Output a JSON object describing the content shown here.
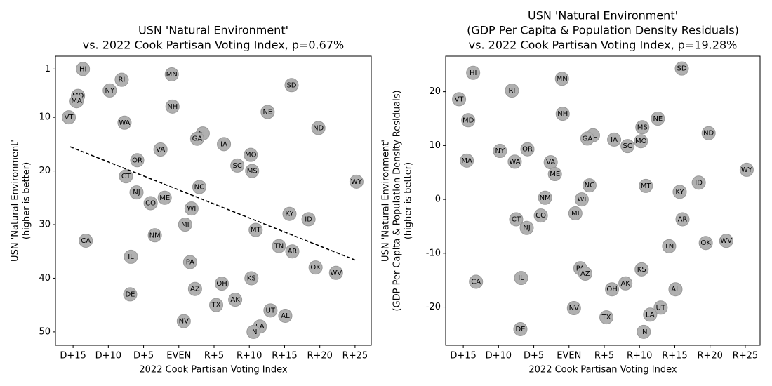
{
  "chart_data": [
    {
      "type": "scatter",
      "title": [
        "USN 'Natural Environment'",
        "vs. 2022 Cook Partisan Voting Index, p=0.67%"
      ],
      "xlabel": "2022 Cook Partisan Voting Index",
      "ylabel": [
        "USN 'Natural Environment'",
        "(higher is better)"
      ],
      "labels": [
        "HI",
        "MD",
        "MA",
        "VT",
        "NY",
        "RI",
        "MN",
        "NH",
        "WA",
        "NE",
        "SD",
        "ND",
        "FL",
        "GA",
        "IA",
        "VA",
        "MO",
        "OR",
        "SC",
        "MS",
        "CT",
        "WY",
        "NC",
        "NJ",
        "ME",
        "CO",
        "WI",
        "KY",
        "ID",
        "MI",
        "MT",
        "NM",
        "CA",
        "TN",
        "AR",
        "IL",
        "PA",
        "OK",
        "WV",
        "KS",
        "OH",
        "AZ",
        "DE",
        "AK",
        "TX",
        "UT",
        "AL",
        "NV",
        "LA",
        "IN"
      ],
      "x": [
        -13.6,
        -14.3,
        -14.5,
        -15.6,
        -9.8,
        -8.1,
        -1.0,
        -0.9,
        -7.7,
        12.6,
        16.0,
        19.8,
        3.4,
        2.6,
        6.4,
        -2.6,
        10.2,
        -5.9,
        8.3,
        10.4,
        -7.5,
        25.2,
        2.9,
        -6.0,
        -2.0,
        -4.0,
        1.8,
        15.7,
        18.4,
        0.9,
        10.9,
        -3.4,
        -13.2,
        14.2,
        16.1,
        -6.8,
        1.6,
        19.4,
        22.3,
        10.3,
        6.1,
        2.3,
        -6.9,
        8.0,
        5.3,
        13.0,
        15.1,
        0.7,
        11.5,
        10.6
      ],
      "y": [
        1,
        6,
        7,
        10,
        5,
        3,
        2,
        8,
        11,
        9,
        4,
        12,
        13,
        14,
        15,
        16,
        17,
        18,
        19,
        20,
        21,
        22,
        23,
        24,
        25,
        26,
        27,
        28,
        29,
        30,
        31,
        32,
        33,
        34,
        35,
        36,
        37,
        38,
        39,
        40,
        41,
        42,
        43,
        44,
        45,
        46,
        47,
        48,
        49,
        50
      ],
      "color": "#b0b0b0",
      "trendline": {
        "x": [
          -15.4,
          25.0
        ],
        "y": [
          15.5,
          36.6
        ]
      },
      "xlim": [
        -17.5,
        27.3
      ],
      "ylim": [
        52.5,
        -1.4
      ],
      "xticks": [
        {
          "value": -15,
          "label": "D+15"
        },
        {
          "value": -10,
          "label": "D+10"
        },
        {
          "value": -5,
          "label": "D+5"
        },
        {
          "value": 0,
          "label": "EVEN"
        },
        {
          "value": 5,
          "label": "R+5"
        },
        {
          "value": 10,
          "label": "R+10"
        },
        {
          "value": 15,
          "label": "R+15"
        },
        {
          "value": 20,
          "label": "R+20"
        },
        {
          "value": 25,
          "label": "R+25"
        }
      ],
      "yticks": [
        1,
        10,
        20,
        30,
        40,
        50
      ]
    },
    {
      "type": "scatter",
      "title": [
        "USN 'Natural Environment'",
        "(GDP Per Capita & Population Density Residuals)",
        "vs. 2022 Cook Partisan Voting Index, p=19.28%"
      ],
      "xlabel": "2022 Cook Partisan Voting Index",
      "ylabel": [
        "USN 'Natural Environment'",
        "(GDP Per Capita & Population Density Residuals)",
        "(higher is better)"
      ],
      "labels": [
        "HI",
        "MN",
        "SD",
        "RI",
        "VT",
        "NE",
        "MD",
        "NH",
        "MS",
        "ND",
        "FL",
        "GA",
        "IA",
        "MO",
        "SC",
        "NY",
        "OR",
        "MA",
        "WA",
        "VA",
        "WY",
        "ME",
        "ID",
        "NC",
        "MT",
        "KY",
        "NM",
        "WI",
        "MI",
        "CO",
        "AR",
        "CT",
        "NJ",
        "WV",
        "OK",
        "TN",
        "PA",
        "KS",
        "AZ",
        "IL",
        "CA",
        "AK",
        "OH",
        "AL",
        "NV",
        "UT",
        "LA",
        "TX",
        "DE",
        "IN"
      ],
      "x": [
        -13.6,
        -1.0,
        16.0,
        -8.1,
        -15.6,
        12.6,
        -14.3,
        -0.9,
        10.4,
        19.8,
        3.4,
        2.6,
        6.4,
        10.2,
        8.3,
        -9.8,
        -5.9,
        -14.5,
        -7.7,
        -2.6,
        25.2,
        -2.0,
        18.4,
        2.9,
        10.9,
        15.7,
        -3.4,
        1.8,
        0.9,
        -4.0,
        16.1,
        -7.5,
        -6.0,
        22.3,
        19.4,
        14.2,
        1.6,
        10.3,
        2.3,
        -6.8,
        -13.2,
        8.0,
        6.1,
        15.1,
        0.7,
        13.0,
        11.5,
        5.3,
        -6.9,
        10.6
      ],
      "y": [
        23.5,
        22.4,
        24.3,
        20.2,
        18.6,
        15.0,
        14.7,
        15.9,
        13.4,
        12.3,
        11.9,
        11.3,
        11.1,
        10.8,
        9.9,
        9.0,
        9.3,
        7.2,
        7.0,
        6.9,
        5.5,
        4.7,
        3.1,
        2.6,
        2.5,
        1.4,
        0.3,
        0,
        -2.6,
        -3.0,
        -3.7,
        -3.7,
        -5.3,
        -7.7,
        -8.1,
        -8.7,
        -12.8,
        -13.0,
        -13.8,
        -14.6,
        -15.3,
        -15.6,
        -16.7,
        -16.7,
        -20.2,
        -20.1,
        -21.4,
        -21.9,
        -24.1,
        -24.6
      ],
      "color": "#b0b0b0",
      "xlim": [
        -17.5,
        27.1
      ],
      "ylim": [
        -27.1,
        26.6
      ],
      "xticks": [
        {
          "value": -15,
          "label": "D+15"
        },
        {
          "value": -10,
          "label": "D+10"
        },
        {
          "value": -5,
          "label": "D+5"
        },
        {
          "value": 0,
          "label": "EVEN"
        },
        {
          "value": 5,
          "label": "R+5"
        },
        {
          "value": 10,
          "label": "R+10"
        },
        {
          "value": 15,
          "label": "R+15"
        },
        {
          "value": 20,
          "label": "R+20"
        },
        {
          "value": 25,
          "label": "R+25"
        }
      ],
      "yticks": [
        -20,
        -10,
        0,
        10,
        20
      ]
    }
  ]
}
